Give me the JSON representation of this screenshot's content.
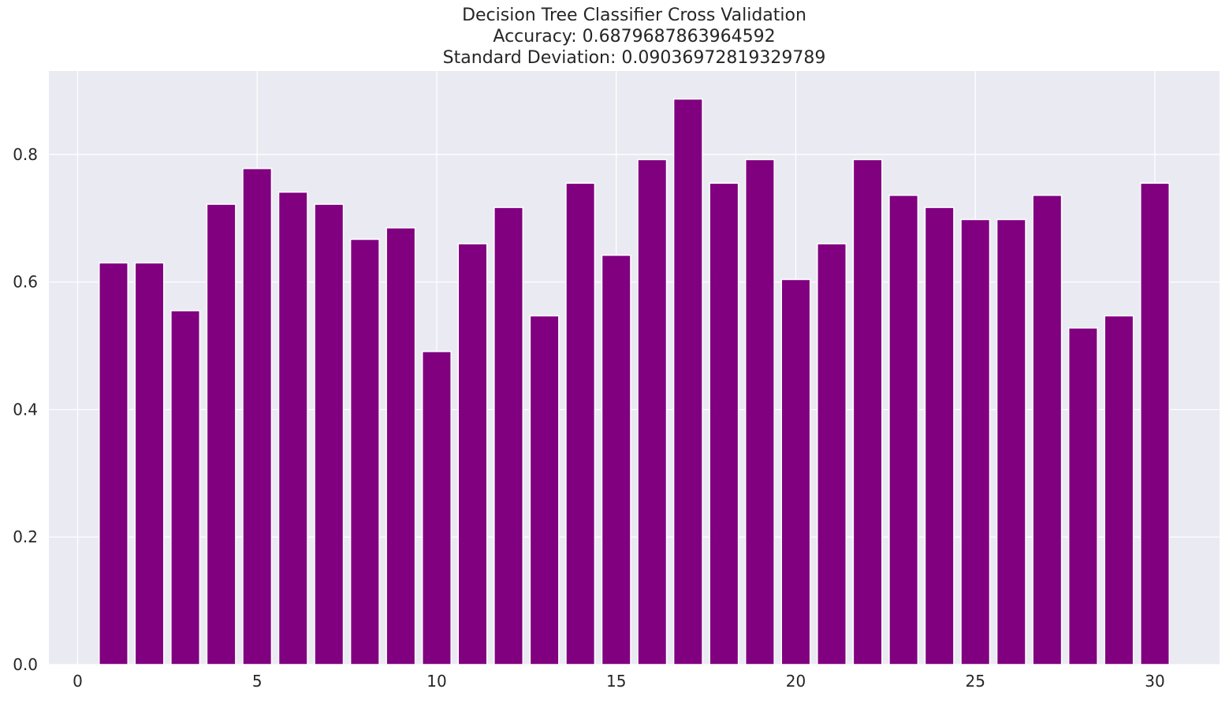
{
  "chart_data": {
    "type": "bar",
    "title_lines": [
      "Decision Tree Classifier Cross Validation",
      "Accuracy: 0.6879687863964592",
      "Standard Deviation: 0.09036972819329789"
    ],
    "xlabel": "",
    "ylabel": "",
    "x": [
      1,
      2,
      3,
      4,
      5,
      6,
      7,
      8,
      9,
      10,
      11,
      12,
      13,
      14,
      15,
      16,
      17,
      18,
      19,
      20,
      21,
      22,
      23,
      24,
      25,
      26,
      27,
      28,
      29,
      30
    ],
    "values": [
      0.63,
      0.63,
      0.555,
      0.722,
      0.778,
      0.741,
      0.722,
      0.667,
      0.685,
      0.491,
      0.66,
      0.717,
      0.547,
      0.755,
      0.642,
      0.792,
      0.887,
      0.755,
      0.792,
      0.604,
      0.66,
      0.792,
      0.736,
      0.717,
      0.698,
      0.698,
      0.736,
      0.528,
      0.547,
      0.755
    ],
    "xlim": [
      -0.8,
      31.8
    ],
    "ylim": [
      0,
      0.931
    ],
    "xticks": [
      0,
      5,
      10,
      15,
      20,
      25,
      30
    ],
    "yticks": [
      0.0,
      0.2,
      0.4,
      0.6,
      0.8
    ],
    "ytick_labels": [
      "0.0",
      "0.2",
      "0.4",
      "0.6",
      "0.8"
    ],
    "bar_color": "#800080",
    "background_color": "#eaeaf2",
    "grid": true,
    "legend": "none"
  }
}
